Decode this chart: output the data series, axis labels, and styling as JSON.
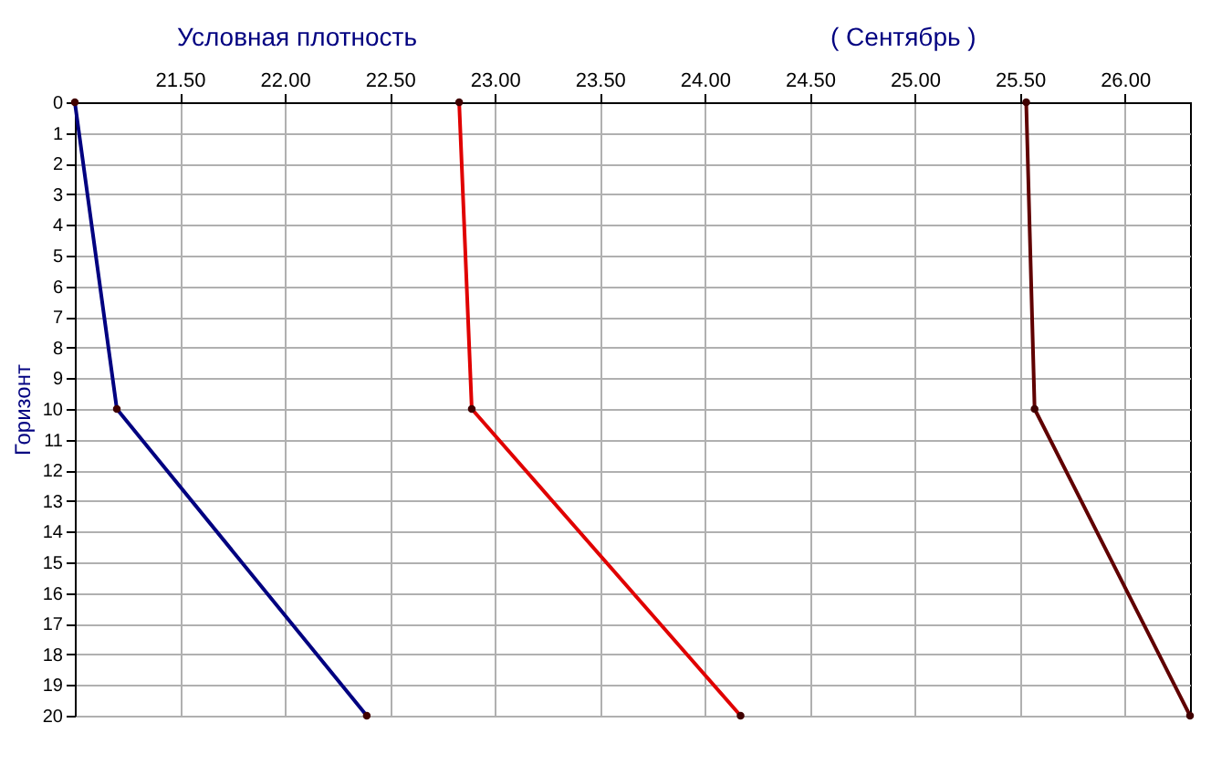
{
  "chart_data": {
    "type": "line",
    "title": "Условная плотность",
    "subtitle": "( Сентябрь )",
    "ylabel": "Горизонт",
    "x": [
      0,
      10,
      20
    ],
    "series": [
      {
        "color": "#000080",
        "values": [
          21.0,
          21.2,
          22.39
        ]
      },
      {
        "color": "#e00000",
        "values": [
          22.83,
          22.89,
          24.17
        ]
      },
      {
        "color": "#600000",
        "values": [
          25.53,
          25.57,
          26.31
        ]
      }
    ],
    "orientation": "horizontal",
    "xlim": [
      21.0,
      26.31
    ],
    "xticks": [
      {
        "value": 21.5,
        "label": "21.50"
      },
      {
        "value": 22.0,
        "label": "22.00"
      },
      {
        "value": 22.5,
        "label": "22.50"
      },
      {
        "value": 23.0,
        "label": "23.00"
      },
      {
        "value": 23.5,
        "label": "23.50"
      },
      {
        "value": 24.0,
        "label": "24.00"
      },
      {
        "value": 24.5,
        "label": "24.50"
      },
      {
        "value": 25.0,
        "label": "25.00"
      },
      {
        "value": 25.5,
        "label": "25.50"
      },
      {
        "value": 26.0,
        "label": "26.00"
      }
    ],
    "ylim": [
      20,
      0
    ],
    "yticks": [
      0,
      1,
      2,
      3,
      4,
      5,
      6,
      7,
      8,
      9,
      10,
      11,
      12,
      13,
      14,
      15,
      16,
      17,
      18,
      19,
      20
    ],
    "grid": true,
    "marker": "circle",
    "line_style": "solid",
    "legend": false
  }
}
